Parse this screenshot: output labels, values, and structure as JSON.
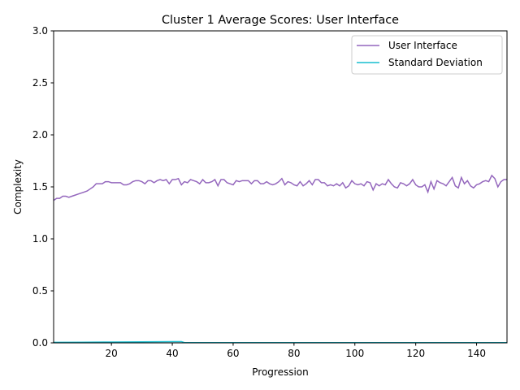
{
  "chart_data": {
    "type": "line",
    "title": "Cluster 1 Average Scores: User Interface",
    "xlabel": "Progression",
    "ylabel": "Complexity",
    "xlim": [
      1,
      150
    ],
    "ylim": [
      0,
      3.0
    ],
    "xticks": [
      20,
      40,
      60,
      80,
      100,
      120,
      140
    ],
    "xtick_labels": [
      "20",
      "40",
      "60",
      "80",
      "100",
      "120",
      "140"
    ],
    "yticks": [
      0,
      0.5,
      1.0,
      1.5,
      2.0,
      2.5,
      3.0
    ],
    "ytick_labels": [
      "0.0",
      "0.5",
      "1.0",
      "1.5",
      "2.0",
      "2.5",
      "3.0"
    ],
    "grid": false,
    "legend": "top-right",
    "series": [
      {
        "name": "User Interface",
        "color": "#9467bd",
        "x": [
          1,
          2,
          3,
          4,
          5,
          6,
          7,
          8,
          9,
          10,
          11,
          12,
          13,
          14,
          15,
          16,
          17,
          18,
          19,
          20,
          21,
          22,
          23,
          24,
          25,
          26,
          27,
          28,
          29,
          30,
          31,
          32,
          33,
          34,
          35,
          36,
          37,
          38,
          39,
          40,
          41,
          42,
          43,
          44,
          45,
          46,
          47,
          48,
          49,
          50,
          51,
          52,
          53,
          54,
          55,
          56,
          57,
          58,
          59,
          60,
          61,
          62,
          63,
          64,
          65,
          66,
          67,
          68,
          69,
          70,
          71,
          72,
          73,
          74,
          75,
          76,
          77,
          78,
          79,
          80,
          81,
          82,
          83,
          84,
          85,
          86,
          87,
          88,
          89,
          90,
          91,
          92,
          93,
          94,
          95,
          96,
          97,
          98,
          99,
          100,
          101,
          102,
          103,
          104,
          105,
          106,
          107,
          108,
          109,
          110,
          111,
          112,
          113,
          114,
          115,
          116,
          117,
          118,
          119,
          120,
          121,
          122,
          123,
          124,
          125,
          126,
          127,
          128,
          129,
          130,
          131,
          132,
          133,
          134,
          135,
          136,
          137,
          138,
          139,
          140,
          141,
          142,
          143,
          144,
          145,
          146,
          147,
          148,
          149,
          150
        ],
        "values": [
          1.37,
          1.39,
          1.39,
          1.41,
          1.41,
          1.4,
          1.41,
          1.42,
          1.43,
          1.44,
          1.45,
          1.46,
          1.48,
          1.5,
          1.53,
          1.53,
          1.53,
          1.55,
          1.55,
          1.54,
          1.54,
          1.54,
          1.54,
          1.52,
          1.52,
          1.53,
          1.55,
          1.56,
          1.56,
          1.55,
          1.53,
          1.56,
          1.56,
          1.54,
          1.56,
          1.57,
          1.56,
          1.57,
          1.53,
          1.57,
          1.57,
          1.58,
          1.52,
          1.55,
          1.54,
          1.57,
          1.56,
          1.55,
          1.53,
          1.57,
          1.54,
          1.54,
          1.55,
          1.57,
          1.51,
          1.57,
          1.57,
          1.54,
          1.53,
          1.52,
          1.56,
          1.55,
          1.56,
          1.56,
          1.56,
          1.53,
          1.56,
          1.56,
          1.53,
          1.53,
          1.55,
          1.53,
          1.52,
          1.53,
          1.55,
          1.58,
          1.52,
          1.55,
          1.54,
          1.52,
          1.51,
          1.55,
          1.51,
          1.53,
          1.56,
          1.52,
          1.57,
          1.57,
          1.54,
          1.54,
          1.51,
          1.52,
          1.51,
          1.53,
          1.51,
          1.54,
          1.49,
          1.51,
          1.56,
          1.53,
          1.52,
          1.53,
          1.51,
          1.55,
          1.54,
          1.47,
          1.53,
          1.51,
          1.53,
          1.52,
          1.57,
          1.53,
          1.5,
          1.49,
          1.54,
          1.53,
          1.51,
          1.53,
          1.57,
          1.52,
          1.5,
          1.5,
          1.52,
          1.45,
          1.55,
          1.48,
          1.56,
          1.54,
          1.53,
          1.51,
          1.55,
          1.59,
          1.51,
          1.49,
          1.59,
          1.53,
          1.56,
          1.51,
          1.49,
          1.52,
          1.53,
          1.55,
          1.56,
          1.55,
          1.61,
          1.58,
          1.5,
          1.55,
          1.57,
          1.57
        ]
      },
      {
        "name": "Standard Deviation",
        "color": "#17becf",
        "x": [
          1,
          10,
          20,
          30,
          40,
          43,
          44,
          50,
          60,
          70,
          80,
          90,
          100,
          110,
          120,
          130,
          140,
          150
        ],
        "values": [
          0.005,
          0.006,
          0.008,
          0.01,
          0.012,
          0.012,
          0.002,
          0.002,
          0.002,
          0.002,
          0.002,
          0.002,
          0.002,
          0.002,
          0.002,
          0.002,
          0.002,
          0.002
        ]
      }
    ]
  }
}
